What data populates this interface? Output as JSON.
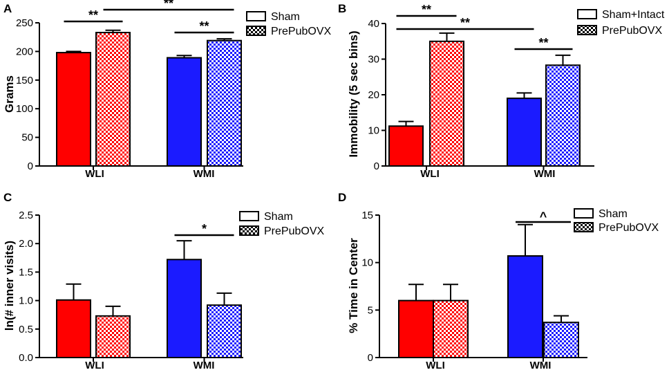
{
  "colors": {
    "red": "#ff0000",
    "blue": "#1b1bff",
    "axis": "#000000"
  },
  "chart_data": [
    {
      "panel": "A",
      "type": "bar",
      "ylabel": "Grams",
      "ylim": [
        0,
        250
      ],
      "yticks": [
        0,
        50,
        100,
        150,
        200,
        250
      ],
      "categories": [
        "WLI",
        "WMI"
      ],
      "series": [
        {
          "name": "Sham",
          "values": [
            198,
            189
          ],
          "errors": [
            2,
            4
          ]
        },
        {
          "name": "PrePubOVX",
          "values": [
            233,
            219
          ],
          "errors": [
            4,
            3
          ]
        }
      ],
      "legend": [
        "Sham",
        "PrePubOVX"
      ],
      "significance": [
        {
          "label": "**",
          "from": [
            0,
            0
          ],
          "to": [
            0,
            1
          ]
        },
        {
          "label": "**",
          "from": [
            0,
            1
          ],
          "to": [
            1,
            1
          ]
        },
        {
          "label": "**",
          "from": [
            1,
            0
          ],
          "to": [
            1,
            1
          ]
        }
      ]
    },
    {
      "panel": "B",
      "type": "bar",
      "ylabel": "Immobility (5 sec bins)",
      "ylim": [
        0,
        40
      ],
      "yticks": [
        0,
        10,
        20,
        30,
        40
      ],
      "categories": [
        "WLI",
        "WMI"
      ],
      "series": [
        {
          "name": "Sham+Intact",
          "values": [
            11.2,
            19
          ],
          "errors": [
            1.3,
            1.5
          ]
        },
        {
          "name": "PrePubOVX",
          "values": [
            35,
            28.3
          ],
          "errors": [
            2.3,
            2.8
          ]
        }
      ],
      "legend": [
        "Sham+Intact",
        "PrePubOVX"
      ],
      "significance": [
        {
          "label": "**",
          "from": [
            0,
            0
          ],
          "to": [
            0,
            1
          ]
        },
        {
          "label": "**",
          "from": [
            0,
            0
          ],
          "to": [
            1,
            0
          ]
        },
        {
          "label": "**",
          "from": [
            1,
            0
          ],
          "to": [
            1,
            1
          ]
        }
      ]
    },
    {
      "panel": "C",
      "type": "bar",
      "ylabel": "ln(# inner visits)",
      "ylim": [
        0,
        2.5
      ],
      "yticks": [
        "0.0",
        "0.5",
        "1.0",
        "1.5",
        "2.0",
        "2.5"
      ],
      "categories": [
        "WLI",
        "WMI"
      ],
      "series": [
        {
          "name": "Sham",
          "values": [
            1.01,
            1.72
          ],
          "errors": [
            0.28,
            0.33
          ]
        },
        {
          "name": "PrePubOVX",
          "values": [
            0.73,
            0.92
          ],
          "errors": [
            0.17,
            0.21
          ]
        }
      ],
      "legend": [
        "Sham",
        "PrePubOVX"
      ],
      "significance": [
        {
          "label": "*",
          "from": [
            1,
            0
          ],
          "to": [
            1,
            1
          ]
        }
      ]
    },
    {
      "panel": "D",
      "type": "bar",
      "ylabel": "% Time in Center",
      "ylim": [
        0,
        15
      ],
      "yticks": [
        0,
        5,
        10,
        15
      ],
      "categories": [
        "WLI",
        "WMI"
      ],
      "series": [
        {
          "name": "Sham",
          "values": [
            6.0,
            10.7
          ],
          "errors": [
            1.7,
            3.3
          ]
        },
        {
          "name": "PrePubOVX",
          "values": [
            6.0,
            3.7
          ],
          "errors": [
            1.7,
            0.7
          ]
        }
      ],
      "legend": [
        "Sham",
        "PrePubOVX"
      ],
      "significance": [
        {
          "label": "^",
          "from": [
            1,
            0
          ],
          "to": [
            1,
            1
          ]
        }
      ]
    }
  ]
}
